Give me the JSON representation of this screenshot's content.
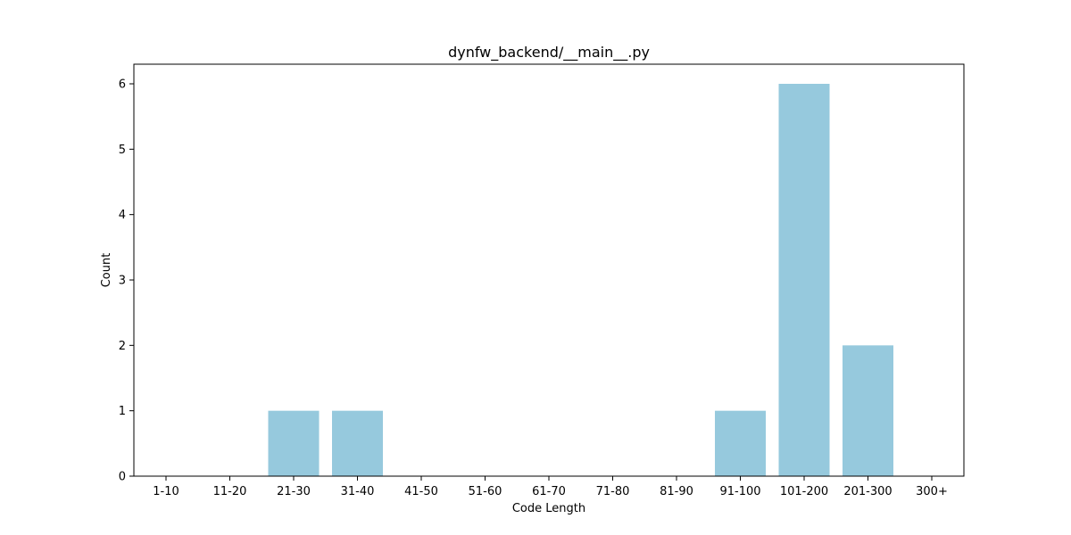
{
  "chart_data": {
    "type": "bar",
    "title": "dynfw_backend/__main__.py",
    "xlabel": "Code Length",
    "ylabel": "Count",
    "categories": [
      "1-10",
      "11-20",
      "21-30",
      "31-40",
      "41-50",
      "51-60",
      "61-70",
      "71-80",
      "81-90",
      "91-100",
      "101-200",
      "201-300",
      "300+"
    ],
    "values": [
      0,
      0,
      1,
      1,
      0,
      0,
      0,
      0,
      0,
      1,
      6,
      2,
      0
    ],
    "ylim": [
      0,
      6.3
    ],
    "yticks": [
      0,
      1,
      2,
      3,
      4,
      5,
      6
    ],
    "grid": false,
    "bar_color": "#96c9dd"
  }
}
